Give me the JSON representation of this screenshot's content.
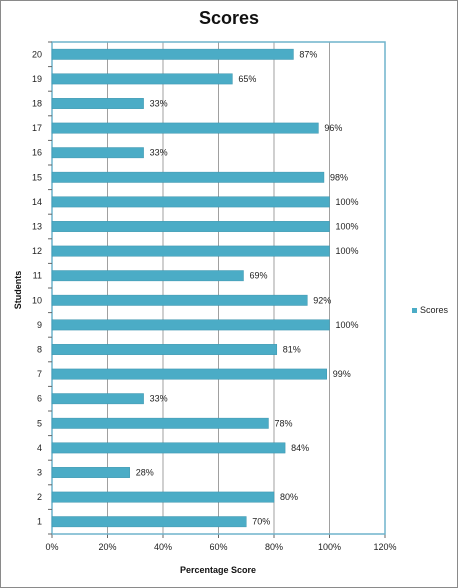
{
  "chart_data": {
    "type": "bar",
    "orientation": "horizontal",
    "title": "Scores",
    "xlabel": "Percentage Score",
    "ylabel": "Students",
    "categories": [
      "1",
      "2",
      "3",
      "4",
      "5",
      "6",
      "7",
      "8",
      "9",
      "10",
      "11",
      "12",
      "13",
      "14",
      "15",
      "16",
      "17",
      "18",
      "19",
      "20"
    ],
    "series": [
      {
        "name": "Scores",
        "values": [
          70,
          80,
          28,
          84,
          78,
          33,
          99,
          81,
          100,
          92,
          69,
          100,
          100,
          100,
          98,
          33,
          96,
          33,
          65,
          87
        ],
        "labels": [
          "70%",
          "80%",
          "28%",
          "84%",
          "78%",
          "33%",
          "99%",
          "81%",
          "100%",
          "92%",
          "69%",
          "100%",
          "100%",
          "100%",
          "98%",
          "33%",
          "96%",
          "33%",
          "65%",
          "87%"
        ]
      }
    ],
    "xlim": [
      0,
      120
    ],
    "xticks": [
      "0%",
      "20%",
      "40%",
      "60%",
      "80%",
      "100%",
      "120%"
    ],
    "grid": true,
    "legend": "right",
    "bar_color": "#4bacc6"
  }
}
